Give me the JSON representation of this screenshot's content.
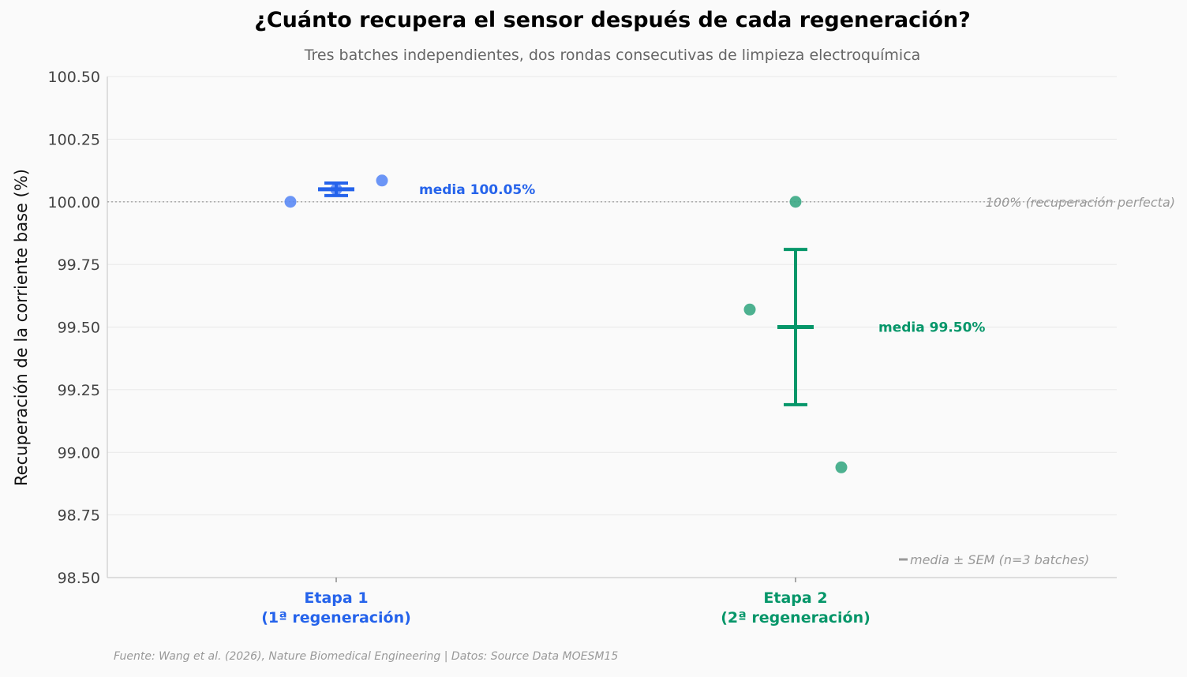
{
  "chart_data": {
    "type": "scatter",
    "title": "¿Cuánto recupera el sensor después de cada regeneración?",
    "subtitle": "Tres batches independientes, dos rondas consecutivas de limpieza electroquímica",
    "ylabel": "Recuperación de la corriente base (%)",
    "ylim": [
      98.5,
      100.5
    ],
    "yticks": [
      98.5,
      98.75,
      99.0,
      99.25,
      99.5,
      99.75,
      100.0,
      100.25,
      100.5
    ],
    "grid": true,
    "categories": [
      {
        "label_line1": "Etapa 1",
        "label_line2": "(1ª regeneración)",
        "color": "#2563eb",
        "point_color": "#5b8af5",
        "points": [
          100.0,
          100.05,
          100.085
        ],
        "mean": 100.05,
        "sem": 0.025,
        "mean_label": "media 100.05%"
      },
      {
        "label_line1": "Etapa 2",
        "label_line2": "(2ª regeneración)",
        "color": "#059669",
        "point_color": "#3aa984",
        "points": [
          99.57,
          100.0,
          98.94
        ],
        "mean": 99.5,
        "sem": 0.31,
        "mean_label": "media 99.50%"
      }
    ],
    "reference_line": {
      "value": 100.0,
      "label": "100% (recuperación perfecta)"
    },
    "legend": {
      "label": "media ± SEM (n=3 batches)",
      "placement": "bottom-right"
    }
  },
  "footer": {
    "source": "Fuente: Wang et al. (2026), Nature Biomedical Engineering | Datos: Source Data MOESM15"
  }
}
